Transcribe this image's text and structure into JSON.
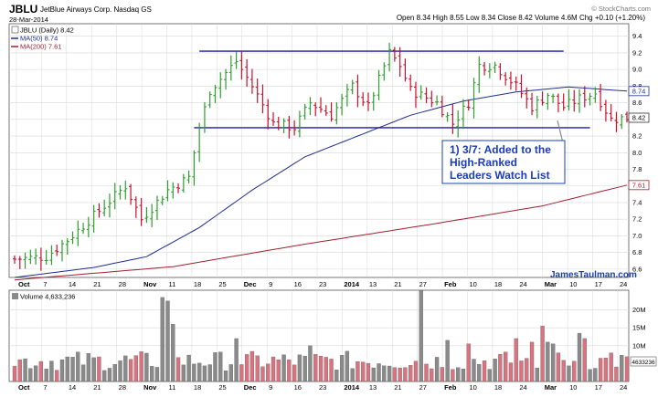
{
  "header": {
    "symbol": "JBLU",
    "company": "JetBlue Airways Corp.  Nasdaq GS",
    "date": "28-Mar-2014",
    "watermark": "© StockCharts.com",
    "ohlc_line": "Open 8.34  High 8.55  Low 8.34  Close 8.42  Volume 4.6M  Chg +0.10 (+1.20%)",
    "chg_arrow": "▲"
  },
  "legend": {
    "price": "JBLU (Daily) 8.42",
    "ma50": "MA(50) 8.74",
    "ma200": "MA(200) 7.61"
  },
  "volume_legend": "Volume 4,633,236",
  "annotation": {
    "lines": [
      "1) 3/7: Added to the",
      "High-Ranked",
      "Leaders Watch List"
    ],
    "credit": "JamesTaulman.com"
  },
  "price_badges": {
    "ma50": "8.74",
    "close": "8.42",
    "ma200": "7.61"
  },
  "volume_badge": "4633236",
  "colors": {
    "up": "#2e9e2e",
    "down": "#c8102e",
    "ma50": "#1f2f8f",
    "ma200": "#a01f2f",
    "trendline": "#1a1aa0",
    "grid": "#d8d8d8",
    "vol_up": "#8a8a8a",
    "vol_down": "#d9737f",
    "annotation_border": "#1a3cb8",
    "annotation_text": "#1a3cb8"
  },
  "chart_data": {
    "type": "ohlc",
    "title": "JBLU JetBlue Airways Corp. Nasdaq GS",
    "price_axis": {
      "ticks": [
        6.6,
        6.8,
        7.0,
        7.2,
        7.4,
        7.6,
        7.8,
        8.0,
        8.2,
        8.4,
        8.6,
        8.8,
        9.0,
        9.2,
        9.4
      ],
      "ylim": [
        6.5,
        9.55
      ]
    },
    "x_axis_labels": [
      "Oct",
      "7",
      "14",
      "21",
      "28",
      "Nov",
      "11",
      "18",
      "25",
      "Dec",
      "9",
      "16",
      "23",
      "2014",
      "13",
      "21",
      "27",
      "Feb",
      "10",
      "18",
      "24",
      "Mar",
      "10",
      "17",
      "24"
    ],
    "price_keys": [
      [
        0,
        6.72
      ],
      [
        6,
        6.75
      ],
      [
        10,
        6.95
      ],
      [
        16,
        7.3
      ],
      [
        21,
        7.6
      ],
      [
        24,
        7.2
      ],
      [
        29,
        7.55
      ],
      [
        33,
        7.7
      ],
      [
        35,
        8.3
      ],
      [
        37,
        8.75
      ],
      [
        42,
        9.1
      ],
      [
        45,
        8.8
      ],
      [
        49,
        8.35
      ],
      [
        53,
        8.3
      ],
      [
        56,
        8.6
      ],
      [
        60,
        8.45
      ],
      [
        64,
        8.8
      ],
      [
        67,
        8.55
      ],
      [
        71,
        9.2
      ],
      [
        73,
        9.05
      ],
      [
        75,
        8.75
      ],
      [
        80,
        8.6
      ],
      [
        83,
        8.35
      ],
      [
        86,
        8.6
      ],
      [
        88,
        9.05
      ],
      [
        91,
        9.05
      ],
      [
        95,
        8.8
      ],
      [
        98,
        8.55
      ],
      [
        101,
        8.7
      ],
      [
        104,
        8.55
      ],
      [
        107,
        8.65
      ],
      [
        110,
        8.72
      ],
      [
        113,
        8.4
      ],
      [
        116,
        8.42
      ]
    ],
    "ma50": [
      [
        0,
        6.5
      ],
      [
        15,
        6.62
      ],
      [
        25,
        6.75
      ],
      [
        35,
        7.1
      ],
      [
        45,
        7.55
      ],
      [
        55,
        7.95
      ],
      [
        65,
        8.2
      ],
      [
        75,
        8.45
      ],
      [
        85,
        8.62
      ],
      [
        95,
        8.73
      ],
      [
        105,
        8.79
      ],
      [
        116,
        8.74
      ]
    ],
    "ma200": [
      [
        0,
        6.47
      ],
      [
        30,
        6.63
      ],
      [
        55,
        6.9
      ],
      [
        80,
        7.15
      ],
      [
        100,
        7.36
      ],
      [
        116,
        7.61
      ]
    ],
    "trendlines": [
      {
        "x0": 35,
        "x1": 104,
        "y": 9.22
      },
      {
        "x0": 34,
        "x1": 109,
        "y": 8.3
      }
    ],
    "volume_axis": {
      "ticks": [
        "10M",
        "15M",
        "20M"
      ],
      "tick_values": [
        10,
        15,
        20
      ],
      "ylim": [
        0,
        25
      ]
    },
    "volume_spikes": [
      [
        28,
        23.5
      ],
      [
        29,
        22.5
      ],
      [
        30,
        16
      ],
      [
        42,
        12
      ],
      [
        56,
        10
      ],
      [
        77,
        25.5
      ],
      [
        82,
        11.5
      ],
      [
        86,
        10.5
      ],
      [
        95,
        12
      ],
      [
        98,
        11
      ],
      [
        100,
        15.5
      ],
      [
        101,
        11
      ],
      [
        102,
        10.5
      ],
      [
        107,
        13.5
      ],
      [
        108,
        12
      ],
      [
        113,
        8
      ]
    ]
  }
}
